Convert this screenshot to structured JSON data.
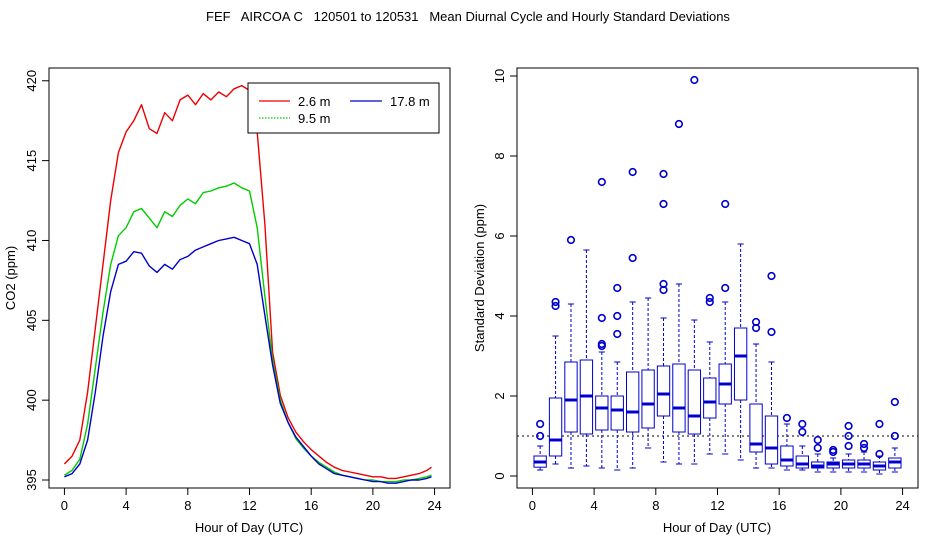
{
  "title": "FEF   AIRCOA C   120501 to 120531   Mean Diurnal Cycle and Hourly Standard Deviations",
  "chart_data": [
    {
      "type": "line",
      "xlabel": "Hour of Day (UTC)",
      "ylabel": "CO2 (ppm)",
      "xlim": [
        -1,
        25
      ],
      "ylim": [
        394.5,
        420.8
      ],
      "xticks": [
        0,
        4,
        8,
        12,
        16,
        20,
        24
      ],
      "yticks": [
        395,
        400,
        405,
        410,
        415,
        420
      ],
      "legend": {
        "placement": "top-right",
        "entries": [
          {
            "label": "2.6 m",
            "color": "#ee0000",
            "style": "solid"
          },
          {
            "label": "9.5 m",
            "color": "#00cc00",
            "style": "dotted"
          },
          {
            "label": "17.8 m",
            "color": "#0000cc",
            "style": "solid"
          }
        ]
      },
      "series": [
        {
          "name": "2.6 m",
          "color": "#ee0000",
          "x": [
            0,
            0.5,
            1,
            1.5,
            2,
            2.5,
            3,
            3.5,
            4,
            4.5,
            5,
            5.5,
            6,
            6.5,
            7,
            7.5,
            8,
            8.5,
            9,
            9.5,
            10,
            10.5,
            11,
            11.5,
            12,
            12.5,
            13,
            13.5,
            14,
            14.5,
            15,
            15.5,
            16,
            16.5,
            17,
            17.5,
            18,
            18.5,
            19,
            19.5,
            20,
            20.5,
            21,
            21.5,
            22,
            22.5,
            23,
            23.5,
            23.8
          ],
          "y": [
            396.0,
            396.5,
            397.5,
            400.5,
            404.5,
            408.5,
            412.5,
            415.5,
            416.8,
            417.5,
            418.5,
            417.0,
            416.7,
            418.0,
            417.5,
            418.8,
            419.1,
            418.5,
            419.2,
            418.8,
            419.3,
            419.0,
            419.5,
            419.7,
            419.4,
            416.8,
            411.0,
            403.0,
            400.3,
            398.9,
            398.0,
            397.4,
            396.9,
            396.5,
            396.1,
            395.8,
            395.6,
            395.5,
            395.4,
            395.3,
            395.2,
            395.2,
            395.1,
            395.1,
            395.2,
            395.3,
            395.4,
            395.6,
            395.8
          ]
        },
        {
          "name": "9.5 m",
          "color": "#00cc00",
          "x": [
            0,
            0.5,
            1,
            1.5,
            2,
            2.5,
            3,
            3.5,
            4,
            4.5,
            5,
            5.5,
            6,
            6.5,
            7,
            7.5,
            8,
            8.5,
            9,
            9.5,
            10,
            10.5,
            11,
            11.5,
            12,
            12.5,
            13,
            13.5,
            14,
            14.5,
            15,
            15.5,
            16,
            16.5,
            17,
            17.5,
            18,
            18.5,
            19,
            19.5,
            20,
            20.5,
            21,
            21.5,
            22,
            22.5,
            23,
            23.5,
            23.8
          ],
          "y": [
            395.3,
            395.6,
            396.3,
            398.5,
            402.0,
            405.5,
            408.5,
            410.3,
            410.8,
            411.8,
            412.0,
            411.4,
            410.8,
            411.8,
            411.5,
            412.2,
            412.6,
            412.3,
            413.0,
            413.1,
            413.3,
            413.4,
            413.6,
            413.3,
            413.1,
            410.8,
            406.5,
            402.5,
            400.0,
            398.6,
            397.6,
            397.0,
            396.5,
            396.1,
            395.8,
            395.5,
            395.3,
            395.2,
            395.1,
            395.0,
            395.0,
            394.9,
            394.9,
            394.9,
            395.0,
            395.0,
            395.1,
            395.2,
            395.3
          ]
        },
        {
          "name": "17.8 m",
          "color": "#0000cc",
          "x": [
            0,
            0.5,
            1,
            1.5,
            2,
            2.5,
            3,
            3.5,
            4,
            4.5,
            5,
            5.5,
            6,
            6.5,
            7,
            7.5,
            8,
            8.5,
            9,
            9.5,
            10,
            10.5,
            11,
            11.5,
            12,
            12.5,
            13,
            13.5,
            14,
            14.5,
            15,
            15.5,
            16,
            16.5,
            17,
            17.5,
            18,
            18.5,
            19,
            19.5,
            20,
            20.5,
            21,
            21.5,
            22,
            22.5,
            23,
            23.5,
            23.8
          ],
          "y": [
            395.2,
            395.4,
            396.0,
            397.5,
            400.5,
            404.0,
            406.8,
            408.5,
            408.7,
            409.3,
            409.2,
            408.4,
            408.0,
            408.5,
            408.2,
            408.8,
            409.0,
            409.4,
            409.6,
            409.8,
            410.0,
            410.1,
            410.2,
            410.0,
            409.8,
            408.5,
            405.3,
            402.2,
            399.8,
            398.6,
            397.7,
            397.1,
            396.5,
            396.0,
            395.7,
            395.4,
            395.3,
            395.2,
            395.1,
            395.0,
            394.9,
            394.9,
            394.8,
            394.8,
            394.9,
            395.0,
            395.0,
            395.1,
            395.2
          ]
        }
      ]
    },
    {
      "type": "box",
      "xlabel": "Hour of Day (UTC)",
      "ylabel": "Standard Deviation (ppm)",
      "xlim": [
        -1,
        25
      ],
      "ylim": [
        -0.3,
        10.2
      ],
      "xticks": [
        0,
        4,
        8,
        12,
        16,
        20,
        24
      ],
      "yticks": [
        0,
        2,
        4,
        6,
        8,
        10
      ],
      "reference_line": 1.0,
      "color": "#0000cc",
      "boxes": [
        {
          "hour": 0.5,
          "whislo": 0.15,
          "q1": 0.22,
          "med": 0.35,
          "q3": 0.5,
          "whishi": 0.75,
          "outliers": [
            1.0,
            1.3
          ]
        },
        {
          "hour": 1.5,
          "whislo": 0.3,
          "q1": 0.5,
          "med": 0.9,
          "q3": 1.95,
          "whishi": 3.5,
          "outliers": [
            4.25,
            4.35
          ]
        },
        {
          "hour": 2.5,
          "whislo": 0.2,
          "q1": 1.1,
          "med": 1.9,
          "q3": 2.85,
          "whishi": 4.3,
          "outliers": [
            5.9
          ]
        },
        {
          "hour": 3.5,
          "whislo": 0.25,
          "q1": 1.05,
          "med": 2.0,
          "q3": 2.9,
          "whishi": 5.65,
          "outliers": []
        },
        {
          "hour": 4.5,
          "whislo": 0.2,
          "q1": 1.15,
          "med": 1.7,
          "q3": 2.0,
          "whishi": 3.1,
          "outliers": [
            3.25,
            3.3,
            3.95,
            7.35
          ]
        },
        {
          "hour": 5.5,
          "whislo": 0.15,
          "q1": 1.15,
          "med": 1.65,
          "q3": 2.0,
          "whishi": 2.85,
          "outliers": [
            3.55,
            4.0,
            4.7
          ]
        },
        {
          "hour": 6.5,
          "whislo": 0.2,
          "q1": 1.1,
          "med": 1.6,
          "q3": 2.6,
          "whishi": 4.35,
          "outliers": [
            5.45,
            7.6
          ]
        },
        {
          "hour": 7.5,
          "whislo": 0.7,
          "q1": 1.2,
          "med": 1.8,
          "q3": 2.65,
          "whishi": 4.45,
          "outliers": []
        },
        {
          "hour": 8.5,
          "whislo": 0.35,
          "q1": 1.5,
          "med": 2.05,
          "q3": 2.75,
          "whishi": 3.95,
          "outliers": [
            4.65,
            4.8,
            6.8,
            7.55
          ]
        },
        {
          "hour": 9.5,
          "whislo": 0.3,
          "q1": 1.1,
          "med": 1.7,
          "q3": 2.8,
          "whishi": 4.8,
          "outliers": [
            8.8
          ]
        },
        {
          "hour": 10.5,
          "whislo": 0.3,
          "q1": 1.05,
          "med": 1.5,
          "q3": 2.65,
          "whishi": 3.9,
          "outliers": [
            9.9
          ]
        },
        {
          "hour": 11.5,
          "whislo": 0.55,
          "q1": 1.45,
          "med": 1.85,
          "q3": 2.45,
          "whishi": 3.35,
          "outliers": [
            4.35,
            4.45
          ]
        },
        {
          "hour": 12.5,
          "whislo": 0.55,
          "q1": 1.8,
          "med": 2.3,
          "q3": 2.8,
          "whishi": 4.35,
          "outliers": [
            4.7,
            6.8
          ]
        },
        {
          "hour": 13.5,
          "whislo": 0.4,
          "q1": 1.9,
          "med": 3.0,
          "q3": 3.7,
          "whishi": 5.8,
          "outliers": []
        },
        {
          "hour": 14.5,
          "whislo": 0.2,
          "q1": 0.6,
          "med": 0.8,
          "q3": 1.8,
          "whishi": 3.3,
          "outliers": [
            3.7,
            3.85
          ]
        },
        {
          "hour": 15.5,
          "whislo": 0.2,
          "q1": 0.3,
          "med": 0.7,
          "q3": 1.5,
          "whishi": 2.85,
          "outliers": [
            3.6,
            5.0
          ]
        },
        {
          "hour": 16.5,
          "whislo": 0.15,
          "q1": 0.25,
          "med": 0.4,
          "q3": 0.75,
          "whishi": 1.3,
          "outliers": [
            1.45
          ]
        },
        {
          "hour": 17.5,
          "whislo": 0.15,
          "q1": 0.2,
          "med": 0.3,
          "q3": 0.5,
          "whishi": 0.75,
          "outliers": [
            1.1,
            1.3
          ]
        },
        {
          "hour": 18.5,
          "whislo": 0.1,
          "q1": 0.2,
          "med": 0.25,
          "q3": 0.35,
          "whishi": 0.55,
          "outliers": [
            0.7,
            0.9
          ]
        },
        {
          "hour": 19.5,
          "whislo": 0.1,
          "q1": 0.2,
          "med": 0.3,
          "q3": 0.35,
          "whishi": 0.45,
          "outliers": [
            0.6,
            0.65
          ]
        },
        {
          "hour": 20.5,
          "whislo": 0.1,
          "q1": 0.2,
          "med": 0.3,
          "q3": 0.4,
          "whishi": 0.55,
          "outliers": [
            0.75,
            1.0,
            1.25
          ]
        },
        {
          "hour": 21.5,
          "whislo": 0.1,
          "q1": 0.2,
          "med": 0.3,
          "q3": 0.4,
          "whishi": 0.6,
          "outliers": [
            0.7,
            0.8
          ]
        },
        {
          "hour": 22.5,
          "whislo": 0.05,
          "q1": 0.15,
          "med": 0.25,
          "q3": 0.35,
          "whishi": 0.5,
          "outliers": [
            0.55,
            1.3
          ]
        },
        {
          "hour": 23.5,
          "whislo": 0.1,
          "q1": 0.2,
          "med": 0.35,
          "q3": 0.45,
          "whishi": 0.7,
          "outliers": [
            1.0,
            1.85
          ]
        }
      ]
    }
  ]
}
